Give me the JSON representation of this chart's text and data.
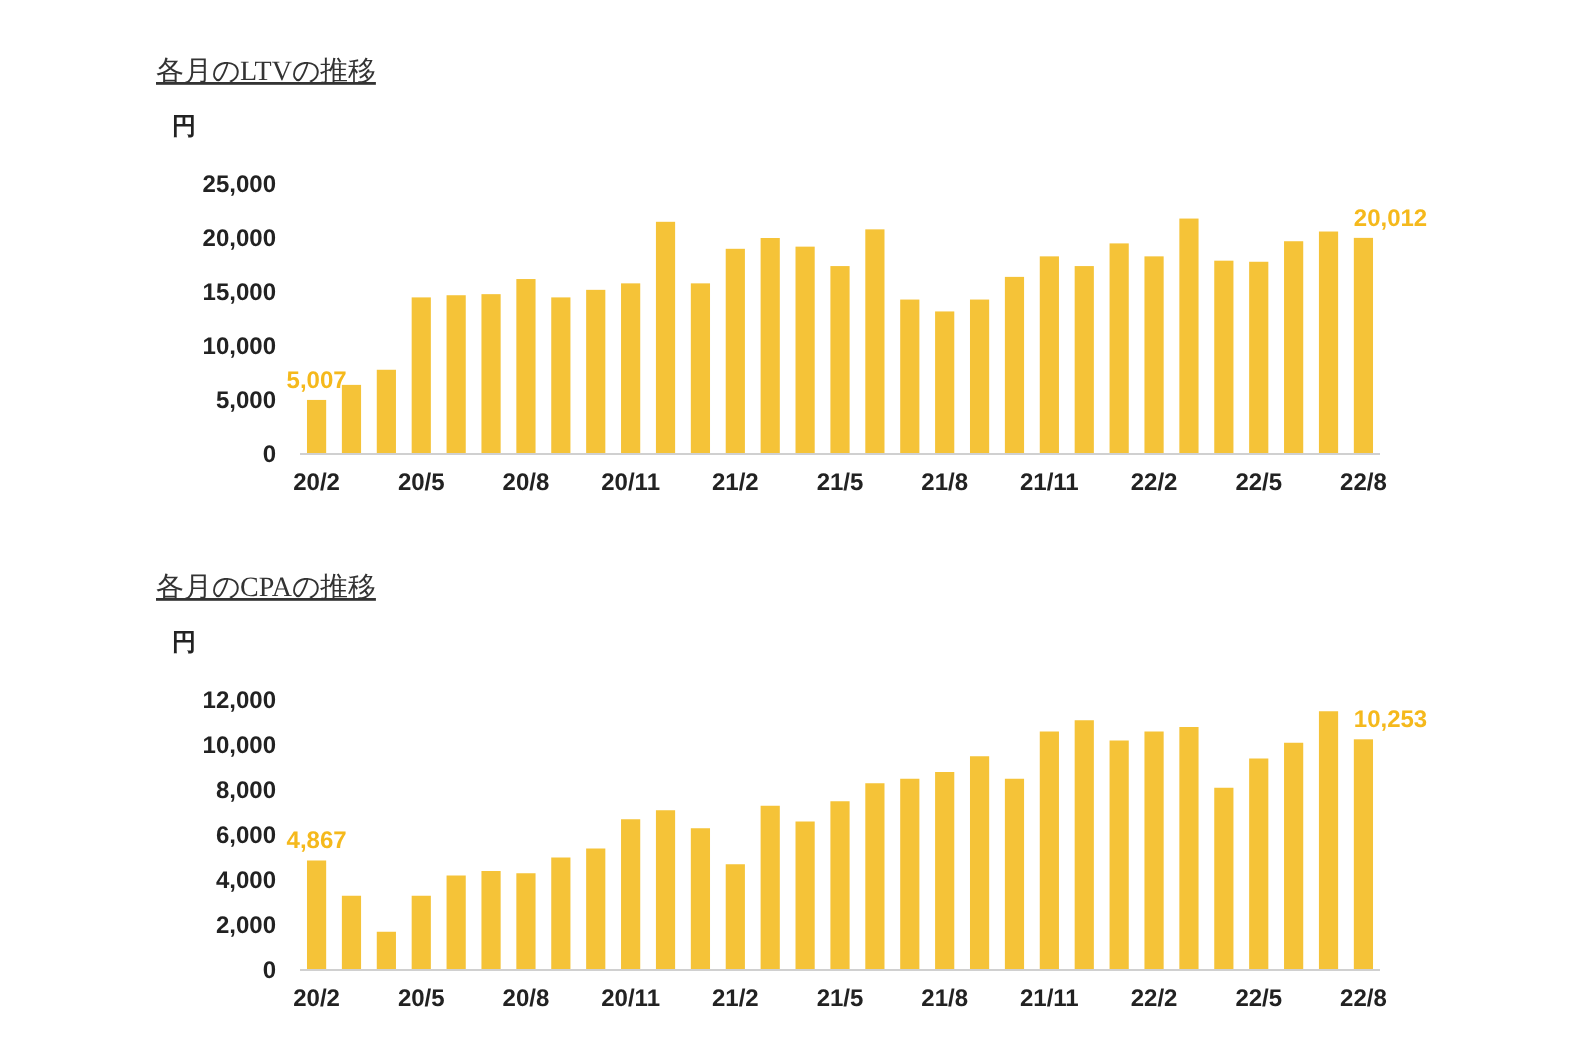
{
  "chart_data": [
    {
      "type": "bar",
      "title": "各月のLTVの推移",
      "ylabel": "円",
      "categories": [
        "20/2",
        null,
        null,
        "20/5",
        null,
        null,
        "20/8",
        null,
        null,
        "20/11",
        null,
        null,
        "21/2",
        null,
        null,
        "21/5",
        null,
        null,
        "21/8",
        null,
        null,
        "21/11",
        null,
        null,
        "22/2",
        null,
        null,
        "22/5",
        null,
        null,
        "22/8"
      ],
      "values": [
        5007,
        6400,
        7800,
        14500,
        14700,
        14800,
        16200,
        14500,
        15200,
        15800,
        21500,
        15800,
        19000,
        20000,
        19200,
        17400,
        20800,
        14300,
        13200,
        14300,
        16400,
        18300,
        17400,
        19500,
        18300,
        21800,
        17900,
        17800,
        19700,
        20600,
        20012
      ],
      "value_labels": [
        "5,007",
        null,
        null,
        null,
        null,
        null,
        null,
        null,
        null,
        null,
        null,
        null,
        null,
        null,
        null,
        null,
        null,
        null,
        null,
        null,
        null,
        null,
        null,
        null,
        null,
        null,
        null,
        null,
        null,
        null,
        "20,012"
      ],
      "color": "#f5c338",
      "ylim": [
        0,
        25000
      ],
      "yticks": [
        {
          "value": 0,
          "label": "0"
        },
        {
          "value": 5000,
          "label": "5,000"
        },
        {
          "value": 10000,
          "label": "10,000"
        },
        {
          "value": 15000,
          "label": "15,000"
        },
        {
          "value": 20000,
          "label": "20,000"
        },
        {
          "value": 25000,
          "label": "25,000"
        }
      ],
      "grid": false
    },
    {
      "type": "bar",
      "title": "各月のCPAの推移",
      "ylabel": "円",
      "categories": [
        "20/2",
        null,
        null,
        "20/5",
        null,
        null,
        "20/8",
        null,
        null,
        "20/11",
        null,
        null,
        "21/2",
        null,
        null,
        "21/5",
        null,
        null,
        "21/8",
        null,
        null,
        "21/11",
        null,
        null,
        "22/2",
        null,
        null,
        "22/5",
        null,
        null,
        "22/8"
      ],
      "values": [
        4867,
        3300,
        1700,
        3300,
        4200,
        4400,
        4300,
        5000,
        5400,
        6700,
        7100,
        6300,
        4700,
        7300,
        6600,
        7500,
        8300,
        8500,
        8800,
        9500,
        8500,
        10600,
        11100,
        10200,
        10600,
        10800,
        8100,
        9400,
        10100,
        11500,
        10253
      ],
      "value_labels": [
        "4,867",
        null,
        null,
        null,
        null,
        null,
        null,
        null,
        null,
        null,
        null,
        null,
        null,
        null,
        null,
        null,
        null,
        null,
        null,
        null,
        null,
        null,
        null,
        null,
        null,
        null,
        null,
        null,
        null,
        null,
        "10,253"
      ],
      "color": "#f5c338",
      "ylim": [
        0,
        12000
      ],
      "yticks": [
        {
          "value": 0,
          "label": "0"
        },
        {
          "value": 2000,
          "label": "2,000"
        },
        {
          "value": 4000,
          "label": "4,000"
        },
        {
          "value": 6000,
          "label": "6,000"
        },
        {
          "value": 8000,
          "label": "8,000"
        },
        {
          "value": 10000,
          "label": "10,000"
        },
        {
          "value": 12000,
          "label": "12,000"
        }
      ],
      "grid": false
    }
  ]
}
